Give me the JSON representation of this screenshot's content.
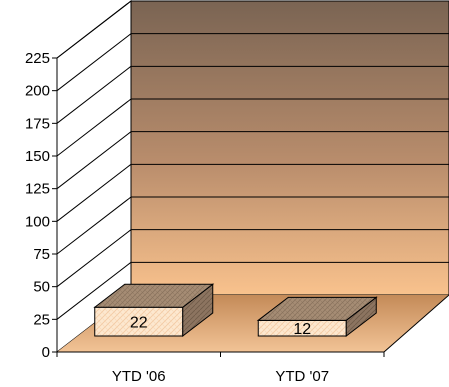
{
  "chart_data": {
    "type": "bar",
    "style": "3d-column",
    "categories": [
      "YTD '06",
      "YTD '07"
    ],
    "values": [
      22,
      12
    ],
    "data_labels": [
      "22",
      "12"
    ],
    "ylim": [
      0,
      225
    ],
    "yticks": [
      "0",
      "25",
      "50",
      "75",
      "100",
      "125",
      "150",
      "175",
      "200",
      "225"
    ],
    "title": "",
    "xlabel": "",
    "ylabel": "",
    "grid": true,
    "legend": "none",
    "colors": {
      "wall_top": "#7a6453",
      "wall_bottom": "#f9c28d",
      "floor": "#d9a06c",
      "bar_front": "#fde8cf",
      "bar_side": "#8c7460",
      "bar_top": "#a58c74",
      "grid": "#000000"
    }
  }
}
